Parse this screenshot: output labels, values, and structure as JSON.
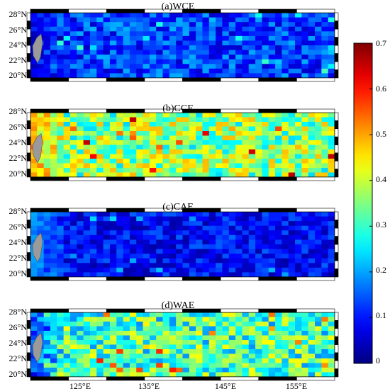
{
  "chart_data": {
    "type": "heatmap",
    "colormap": "jet",
    "color_range": [
      0,
      0.7
    ],
    "colorbar_ticks": [
      "0",
      "0.1",
      "0.2",
      "0.3",
      "0.4",
      "0.5",
      "0.6",
      "0.7"
    ],
    "x_range": [
      120,
      160
    ],
    "y_range": [
      20,
      28
    ],
    "x_ticks": [
      "125°E",
      "135°E",
      "145°E",
      "155°E"
    ],
    "y_ticks": [
      "20°N",
      "22°N",
      "24°N",
      "26°N",
      "28°N"
    ],
    "grid_cols": 46,
    "grid_rows": 14,
    "land_color": "#9a9a9a",
    "panels": [
      {
        "title": "(a)WCE",
        "mean": 0.13,
        "spread": 0.05,
        "west_value": 0.05
      },
      {
        "title": "(b)CCE",
        "mean": 0.36,
        "spread": 0.08,
        "west_value": 0.55
      },
      {
        "title": "(c)CAE",
        "mean": 0.09,
        "spread": 0.04,
        "west_value": 0.24
      },
      {
        "title": "(d)WAE",
        "mean": 0.31,
        "spread": 0.08,
        "west_value": 0.05
      }
    ]
  }
}
